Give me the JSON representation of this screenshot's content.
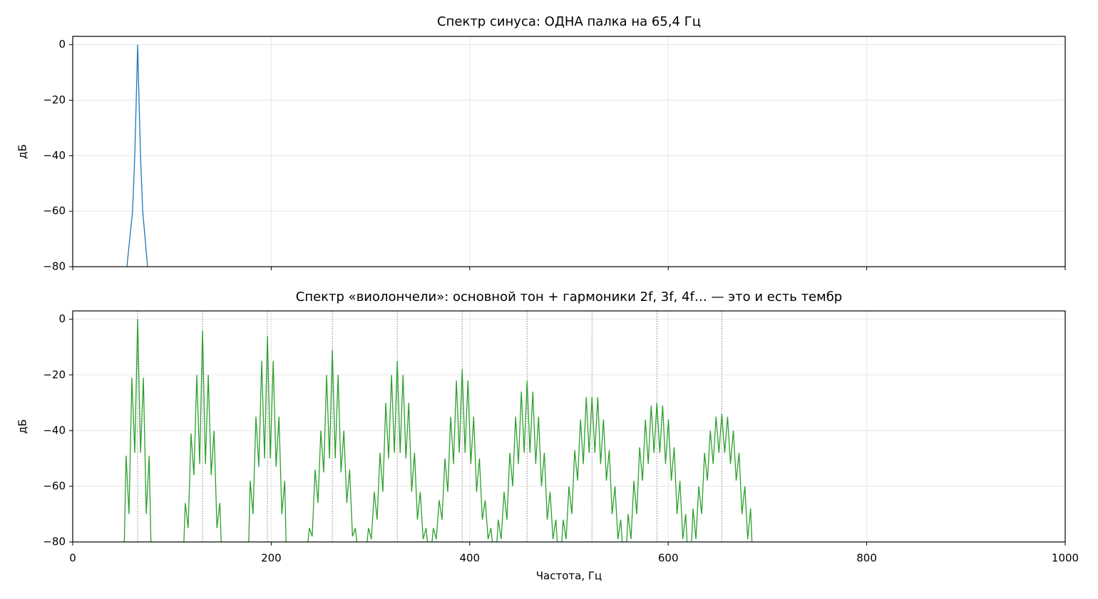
{
  "chart_data": [
    {
      "type": "line",
      "title": "Спектр синуса: ОДНА палка на 65,4 Гц",
      "ylabel": "дБ",
      "xlim": [
        0,
        1000
      ],
      "xticks": [
        0,
        200,
        400,
        600,
        800,
        1000
      ],
      "ylim": [
        -80,
        3
      ],
      "yticks": [
        {
          "value": -80,
          "label": "−80"
        },
        {
          "value": -60,
          "label": "−60"
        },
        {
          "value": -40,
          "label": "−40"
        },
        {
          "value": -20,
          "label": "−20"
        },
        0
      ],
      "grid": true,
      "series": [
        {
          "color": "#1f77b4",
          "x": [
            54.6,
            58,
            60.3,
            62.5,
            64,
            65.4,
            66.8,
            68.3,
            70.5,
            72.5,
            75.4
          ],
          "values": [
            -80,
            -68,
            -60,
            -40,
            -20,
            0,
            -20,
            -40,
            -60,
            -68,
            -80
          ]
        }
      ]
    },
    {
      "type": "line",
      "title": "Спектр «виолончели»: основной тон + гармоники 2f, 3f, 4f… — это и есть тембр",
      "ylabel": "дБ",
      "xlabel": "Частота, Гц",
      "xlim": [
        0,
        1000
      ],
      "xticks": [
        0,
        200,
        400,
        600,
        800,
        1000
      ],
      "ylim": [
        -80,
        3
      ],
      "yticks": [
        {
          "value": -80,
          "label": "−80"
        },
        {
          "value": -60,
          "label": "−60"
        },
        {
          "value": -40,
          "label": "−40"
        },
        {
          "value": -20,
          "label": "−20"
        },
        0
      ],
      "grid": true,
      "harmonics": [
        65.4,
        130.8,
        196.2,
        261.6,
        327.0,
        392.4,
        457.8,
        523.2,
        588.6,
        654.0
      ],
      "series": [
        {
          "color": "#2ca02c",
          "x": [
            52.0,
            53.8,
            56.7,
            59.6,
            62.5,
            65.4,
            68.3,
            71.2,
            74.1,
            77.0,
            78.8,
            null,
            112.0,
            113.4,
            116.3,
            119.2,
            122.1,
            125.0,
            127.9,
            130.8,
            133.7,
            136.6,
            139.5,
            142.4,
            145.3,
            148.2,
            149.6,
            null,
            177.4,
            178.8,
            181.7,
            184.6,
            187.5,
            190.4,
            193.3,
            196.2,
            199.1,
            202.0,
            204.9,
            207.8,
            210.7,
            213.6,
            215.0,
            null,
            237.0,
            238.4,
            241.3,
            244.2,
            247.1,
            250.0,
            252.9,
            255.8,
            258.7,
            261.6,
            264.5,
            267.4,
            270.3,
            273.2,
            276.1,
            279.0,
            281.9,
            284.8,
            286.2,
            null,
            296.6,
            298.0,
            300.9,
            303.8,
            306.7,
            309.6,
            312.5,
            315.4,
            318.3,
            321.2,
            324.1,
            327.0,
            329.9,
            332.8,
            335.7,
            338.6,
            341.5,
            344.4,
            347.3,
            350.2,
            353.1,
            356.0,
            357.4,
            null,
            362.0,
            363.4,
            366.3,
            369.2,
            372.1,
            375.0,
            377.9,
            380.8,
            383.7,
            386.6,
            389.5,
            392.4,
            395.3,
            398.2,
            401.1,
            404.0,
            406.9,
            409.8,
            412.7,
            415.6,
            418.5,
            421.4,
            422.8,
            null,
            427.4,
            428.8,
            431.7,
            434.6,
            437.5,
            440.4,
            443.3,
            446.2,
            449.1,
            452.0,
            454.9,
            457.8,
            460.7,
            463.6,
            466.5,
            469.4,
            472.3,
            475.2,
            478.1,
            481.0,
            483.9,
            486.8,
            488.2,
            null,
            492.8,
            494.2,
            497.1,
            500.0,
            502.9,
            505.8,
            508.7,
            511.6,
            514.5,
            517.4,
            520.3,
            523.2,
            526.1,
            529.0,
            531.9,
            534.8,
            537.7,
            540.6,
            543.5,
            546.4,
            549.3,
            552.2,
            553.6,
            null,
            558.2,
            559.6,
            562.5,
            565.4,
            568.3,
            571.2,
            574.1,
            577.0,
            579.9,
            582.8,
            585.7,
            588.6,
            591.5,
            594.4,
            597.3,
            600.2,
            603.1,
            606.0,
            608.9,
            611.8,
            614.7,
            617.6,
            619.0,
            null,
            623.6,
            625.0,
            627.9,
            630.8,
            633.7,
            636.6,
            639.5,
            642.4,
            645.3,
            648.2,
            651.1,
            654.0,
            656.9,
            659.8,
            662.7,
            665.6,
            668.5,
            671.4,
            674.3,
            677.2,
            680.1,
            683.0,
            684.4
          ],
          "values": [
            -80,
            -49,
            -70,
            -21,
            -48,
            0,
            -48,
            -21,
            -70,
            -49,
            -80,
            null,
            -80,
            -66,
            -75,
            -41,
            -56,
            -20,
            -52,
            -4,
            -52,
            -20,
            -56,
            -40,
            -75,
            -66,
            -80,
            null,
            -80,
            -58,
            -70,
            -35,
            -53,
            -15,
            -50,
            -6,
            -50,
            -15,
            -53,
            -35,
            -70,
            -58,
            -80,
            null,
            -80,
            -75,
            -78,
            -54,
            -66,
            -40,
            -55,
            -20,
            -50,
            -11,
            -50,
            -20,
            -55,
            -40,
            -66,
            -54,
            -78,
            -75,
            -80,
            null,
            -80,
            -75,
            -79,
            -62,
            -72,
            -48,
            -62,
            -30,
            -50,
            -20,
            -48,
            -15,
            -48,
            -20,
            -50,
            -30,
            -62,
            -48,
            -72,
            -62,
            -79,
            -75,
            -80,
            null,
            -80,
            -75,
            -79,
            -65,
            -72,
            -50,
            -62,
            -35,
            -52,
            -22,
            -48,
            -18,
            -48,
            -22,
            -52,
            -35,
            -62,
            -50,
            -72,
            -65,
            -79,
            -75,
            -80,
            null,
            -80,
            -72,
            -79,
            -62,
            -72,
            -48,
            -60,
            -35,
            -52,
            -26,
            -48,
            -22,
            -48,
            -26,
            -52,
            -35,
            -60,
            -48,
            -72,
            -62,
            -79,
            -72,
            -80,
            null,
            -80,
            -72,
            -79,
            -60,
            -70,
            -47,
            -58,
            -36,
            -52,
            -28,
            -48,
            -28,
            -48,
            -28,
            -52,
            -36,
            -58,
            -47,
            -70,
            -60,
            -79,
            -72,
            -80,
            null,
            -80,
            -70,
            -79,
            -58,
            -70,
            -46,
            -58,
            -36,
            -52,
            -31,
            -48,
            -30,
            -48,
            -31,
            -52,
            -36,
            -58,
            -46,
            -70,
            -58,
            -79,
            -70,
            -80,
            null,
            -80,
            -68,
            -79,
            -60,
            -70,
            -48,
            -58,
            -40,
            -52,
            -35,
            -48,
            -34,
            -48,
            -35,
            -52,
            -40,
            -58,
            -48,
            -70,
            -60,
            -79,
            -68,
            -80
          ]
        }
      ]
    }
  ]
}
